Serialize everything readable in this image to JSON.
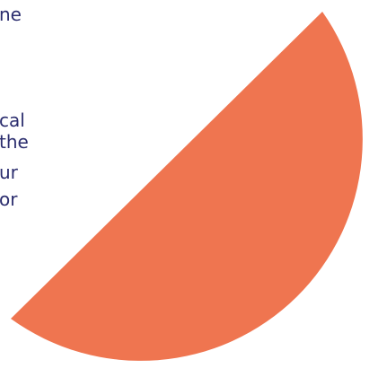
{
  "text_fragments": [
    "ne",
    "cal",
    "the",
    "ur",
    "or"
  ],
  "colors": {
    "accent": "#EF7550",
    "text": "#2B2D6E",
    "background": "#FFFFFF"
  }
}
